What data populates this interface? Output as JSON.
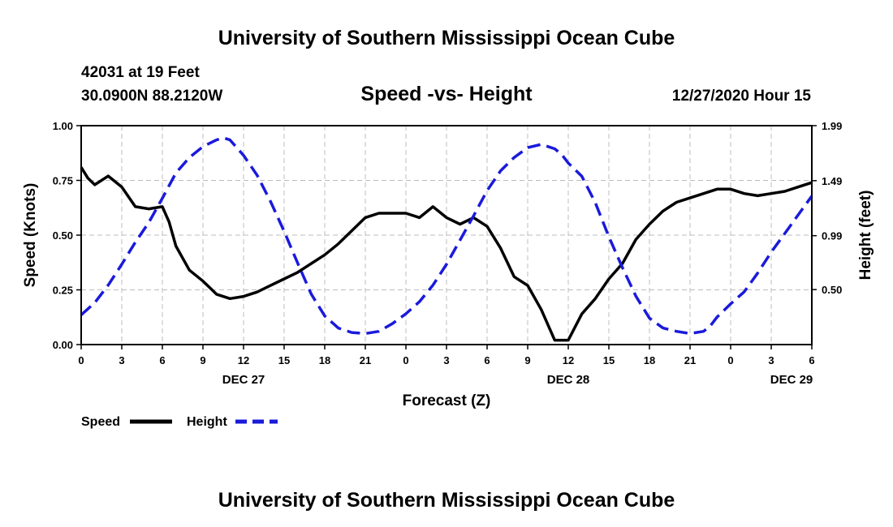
{
  "page": {
    "title": "University of Southern Mississippi Ocean Cube",
    "footer_title": "University of Southern Mississippi Ocean Cube",
    "station": "42031 at 19 Feet",
    "location": "30.0900N 88.2120W",
    "datetime": "12/27/2020 Hour 15"
  },
  "chart_data": {
    "type": "line",
    "title": "Speed -vs- Height",
    "xlabel": "Forecast (Z)",
    "ylabel": "Speed (Knots)",
    "y2label": "Height (feet)",
    "x_range": [
      0,
      54
    ],
    "ylim": [
      0,
      1.0
    ],
    "y2lim": [
      0.0,
      1.99
    ],
    "x_ticks": [
      0,
      3,
      6,
      9,
      12,
      15,
      18,
      21,
      24,
      27,
      30,
      33,
      36,
      39,
      42,
      45,
      48,
      51,
      54
    ],
    "x_tick_labels": [
      "0",
      "3",
      "6",
      "9",
      "12",
      "15",
      "18",
      "21",
      "0",
      "3",
      "6",
      "9",
      "12",
      "15",
      "18",
      "21",
      "0",
      "3",
      "6"
    ],
    "y_ticks": [
      0,
      0.25,
      0.5,
      0.75,
      1.0
    ],
    "y_tick_labels": [
      "0.00",
      "0.25",
      "0.50",
      "0.75",
      "1.00"
    ],
    "y2_ticks": [
      0.5,
      0.99,
      1.49,
      1.99
    ],
    "y2_tick_labels": [
      "0.50",
      "0.99",
      "1.49",
      "1.99"
    ],
    "date_labels": [
      {
        "x": 12,
        "label": "DEC 27"
      },
      {
        "x": 36,
        "label": "DEC 28"
      },
      {
        "x": 52.5,
        "label": "DEC 29"
      }
    ],
    "grid": true,
    "legend": "bottom-left",
    "series": [
      {
        "name": "Speed",
        "axis": "left",
        "color": "#000000",
        "style": "solid",
        "x": [
          0,
          0.5,
          1,
          2,
          3,
          4,
          5,
          6,
          6.5,
          7,
          8,
          9,
          10,
          11,
          12,
          13,
          14,
          15,
          16,
          17,
          18,
          19,
          20,
          21,
          22,
          23,
          24,
          25,
          26,
          27,
          28,
          29,
          30,
          31,
          32,
          33,
          34,
          35,
          36,
          37,
          38,
          39,
          40,
          41,
          42,
          43,
          44,
          45,
          46,
          47,
          48,
          49,
          50,
          51,
          52,
          53,
          54
        ],
        "values": [
          0.81,
          0.76,
          0.73,
          0.77,
          0.72,
          0.63,
          0.62,
          0.63,
          0.56,
          0.45,
          0.34,
          0.29,
          0.23,
          0.21,
          0.22,
          0.24,
          0.27,
          0.3,
          0.33,
          0.37,
          0.41,
          0.46,
          0.52,
          0.58,
          0.6,
          0.6,
          0.6,
          0.58,
          0.63,
          0.58,
          0.55,
          0.58,
          0.54,
          0.44,
          0.31,
          0.27,
          0.16,
          0.02,
          0.02,
          0.14,
          0.21,
          0.3,
          0.37,
          0.48,
          0.55,
          0.61,
          0.65,
          0.67,
          0.69,
          0.71,
          0.71,
          0.69,
          0.68,
          0.69,
          0.7,
          0.72,
          0.74
        ]
      },
      {
        "name": "Height",
        "axis": "right",
        "color": "#1a1adb",
        "style": "dashed",
        "x": [
          0,
          1,
          2,
          3,
          4,
          5,
          6,
          7,
          8,
          9,
          10,
          10.5,
          11,
          12,
          13,
          14,
          15,
          16,
          17,
          18,
          19,
          20,
          21,
          22,
          23,
          24,
          25,
          26,
          27,
          28,
          29,
          30,
          31,
          32,
          33,
          34,
          35,
          35.5,
          36,
          37,
          38,
          39,
          40,
          41,
          42,
          43,
          44,
          45,
          46,
          46.5,
          47,
          48,
          49,
          50,
          51,
          52,
          53,
          54
        ],
        "values": [
          0.27,
          0.38,
          0.54,
          0.73,
          0.93,
          1.11,
          1.33,
          1.56,
          1.7,
          1.8,
          1.86,
          1.88,
          1.86,
          1.72,
          1.54,
          1.3,
          1.03,
          0.74,
          0.46,
          0.26,
          0.15,
          0.11,
          0.1,
          0.12,
          0.19,
          0.28,
          0.39,
          0.54,
          0.73,
          0.95,
          1.17,
          1.4,
          1.58,
          1.7,
          1.79,
          1.82,
          1.78,
          1.73,
          1.65,
          1.53,
          1.29,
          0.98,
          0.7,
          0.44,
          0.24,
          0.15,
          0.12,
          0.1,
          0.12,
          0.17,
          0.25,
          0.37,
          0.48,
          0.65,
          0.84,
          1.01,
          1.18,
          1.35
        ]
      }
    ]
  }
}
